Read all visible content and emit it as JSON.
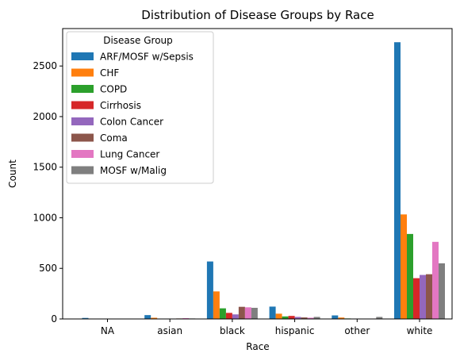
{
  "chart_data": {
    "type": "bar",
    "title": "Distribution of Disease Groups by Race",
    "xlabel": "Race",
    "ylabel": "Count",
    "categories": [
      "NA",
      "asian",
      "black",
      "hispanic",
      "other",
      "white"
    ],
    "ylim": [
      0,
      2870
    ],
    "yticks": [
      0,
      500,
      1000,
      1500,
      2000,
      2500
    ],
    "grid": false,
    "legend": {
      "title": "Disease Group",
      "placement": "top-left"
    },
    "series": [
      {
        "name": "ARF/MOSF w/Sepsis",
        "color": "#1f77b4",
        "values": [
          10,
          38,
          568,
          122,
          35,
          2735
        ]
      },
      {
        "name": "CHF",
        "color": "#ff7f0e",
        "values": [
          3,
          12,
          272,
          52,
          14,
          1033
        ]
      },
      {
        "name": "COPD",
        "color": "#2ca02c",
        "values": [
          1,
          3,
          105,
          25,
          5,
          840
        ]
      },
      {
        "name": "Cirrhosis",
        "color": "#d62728",
        "values": [
          2,
          3,
          60,
          30,
          3,
          403
        ]
      },
      {
        "name": "Colon Cancer",
        "color": "#9467bd",
        "values": [
          1,
          3,
          45,
          20,
          3,
          435
        ]
      },
      {
        "name": "Coma",
        "color": "#8c564b",
        "values": [
          3,
          5,
          120,
          15,
          3,
          442
        ]
      },
      {
        "name": "Lung Cancer",
        "color": "#e377c2",
        "values": [
          1,
          8,
          115,
          12,
          4,
          762
        ]
      },
      {
        "name": "MOSF w/Malig",
        "color": "#7f7f7f",
        "values": [
          3,
          5,
          110,
          20,
          20,
          550
        ]
      }
    ]
  }
}
